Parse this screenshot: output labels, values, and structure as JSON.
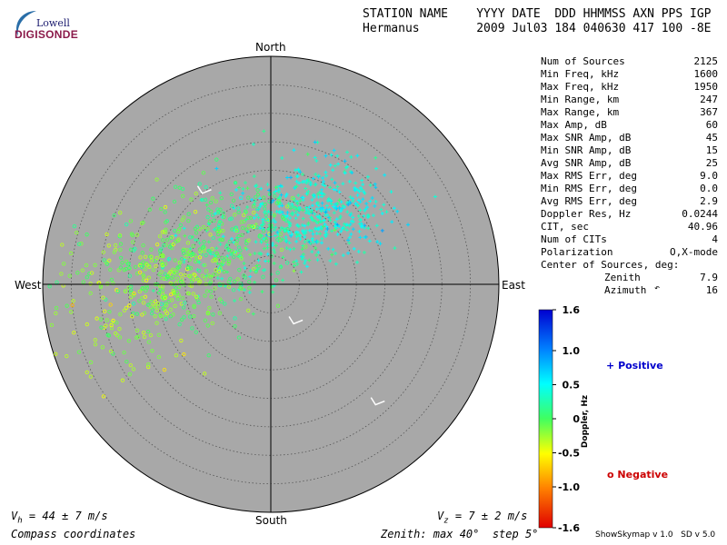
{
  "logo": {
    "top": "Lowell",
    "bottom": "DIGISONDE"
  },
  "header": {
    "line1": "STATION NAME    YYYY DATE  DDD HHMMSS AXN PPS IGP",
    "line2": "Hermanus        2009 Jul03 184 040630 417 100 -8E"
  },
  "stats": [
    {
      "label": "Num of Sources",
      "value": "2125"
    },
    {
      "label": "Min Freq, kHz",
      "value": "1600"
    },
    {
      "label": "Max Freq, kHz",
      "value": "1950"
    },
    {
      "label": "Min Range, km",
      "value": "247"
    },
    {
      "label": "Max Range, km",
      "value": "367"
    },
    {
      "label": "Max Amp, dB",
      "value": "60"
    },
    {
      "label": "Max SNR Amp, dB",
      "value": "45"
    },
    {
      "label": "Min SNR Amp, dB",
      "value": "15"
    },
    {
      "label": "Avg SNR Amp, dB",
      "value": "25"
    },
    {
      "label": "Max RMS Err, deg",
      "value": "9.0"
    },
    {
      "label": "Min RMS Err, deg",
      "value": "0.0"
    },
    {
      "label": "Avg RMS Err, deg",
      "value": "2.9"
    },
    {
      "label": "Doppler Res, Hz",
      "value": "0.0244"
    },
    {
      "label": "CIT, sec",
      "value": "40.96"
    },
    {
      "label": "Num of CITs",
      "value": "4"
    },
    {
      "label": "Polarization",
      "value": "O,X-mode"
    }
  ],
  "center": {
    "title": "Center of Sources, deg:",
    "zenith_label": "Zenith",
    "zenith_value": "7.9",
    "azimuth_label": "Azimuth",
    "azimuth_value": "16",
    "azimuth_arrow": "↶"
  },
  "compass": {
    "north": "North",
    "south": "South",
    "west": "West",
    "east": "East"
  },
  "footer": {
    "vh": "44 ± 7 m/s",
    "vz": "7 ± 2 m/s",
    "coords": "Compass coordinates",
    "zenith": "Zenith: max 40°  step 5°",
    "version": "ShowSkymap v 1.0   SD v 5.0"
  },
  "colors": {
    "disk": "#a8a8a8",
    "rings": "#555555",
    "axes": "#000000",
    "positive_text": "#0000cc",
    "negative_text": "#cc0000",
    "logo_blue": "#1a1a6e",
    "logo_red": "#8b1a4a"
  },
  "chart_data": {
    "type": "scatter",
    "title": "",
    "projection": "polar-skymap",
    "zenith_max_deg": 40,
    "zenith_step_deg": 5,
    "colorbar": {
      "label": "Doppler, Hz",
      "min": -1.6,
      "max": 1.6,
      "ticks": [
        "1.6",
        "1.0",
        "0.5",
        "0",
        "-0.5",
        "-1.0",
        "-1.6"
      ]
    },
    "legend": [
      {
        "marker": "+",
        "name": "Positive"
      },
      {
        "marker": "o",
        "name": "Negative"
      }
    ],
    "velocity_arrows": [
      {
        "azimuth_deg": 323,
        "zenith_deg": 20
      },
      {
        "azimuth_deg": 150,
        "zenith_deg": 8
      },
      {
        "azimuth_deg": 139,
        "zenith_deg": 28
      }
    ],
    "series": [
      {
        "name": "Positive",
        "marker": "+",
        "clusters": [
          {
            "azimuth_deg": 36,
            "zenith_deg": 17,
            "spread_deg": 5.0,
            "count": 320,
            "doppler": 0.45
          },
          {
            "azimuth_deg": 12,
            "zenith_deg": 10,
            "spread_deg": 5.0,
            "count": 220,
            "doppler": 0.28
          },
          {
            "azimuth_deg": 300,
            "zenith_deg": 9,
            "spread_deg": 5.0,
            "count": 90,
            "doppler": 0.2
          }
        ]
      },
      {
        "name": "Negative",
        "marker": "o",
        "clusters": [
          {
            "azimuth_deg": 278,
            "zenith_deg": 17,
            "spread_deg": 6.0,
            "count": 380,
            "doppler": -0.1
          },
          {
            "azimuth_deg": 258,
            "zenith_deg": 26,
            "spread_deg": 6.0,
            "count": 110,
            "doppler": -0.3
          },
          {
            "azimuth_deg": 330,
            "zenith_deg": 12,
            "spread_deg": 5.0,
            "count": 140,
            "doppler": 0.05
          }
        ]
      }
    ]
  }
}
